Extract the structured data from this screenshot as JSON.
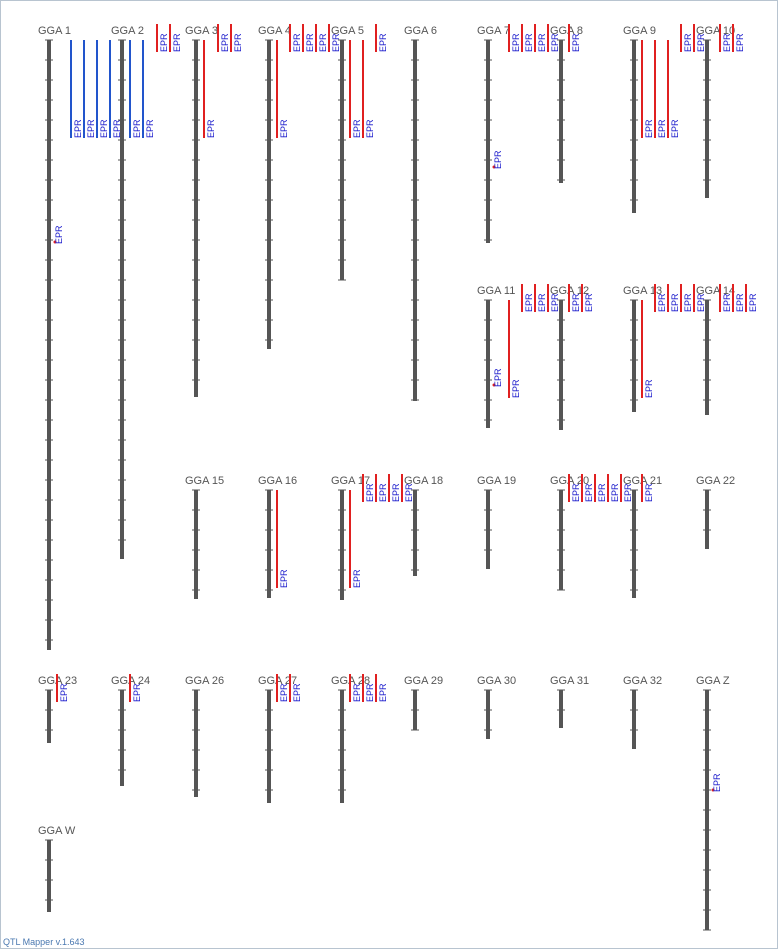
{
  "chromosomes": [
    {
      "label": "GGA 1",
      "qtls": [
        "EPR",
        "EPR",
        "EPR",
        "EPR",
        "EPR"
      ]
    },
    {
      "label": "GGA 2",
      "qtls": [
        "EPR",
        "EPR",
        "EPR",
        "EPR"
      ]
    },
    {
      "label": "GGA 3",
      "qtls": [
        "EPR",
        "EPR",
        "EPR"
      ]
    },
    {
      "label": "GGA 4",
      "qtls": [
        "EPR",
        "EPR",
        "EPR",
        "EPR",
        "EPR"
      ]
    },
    {
      "label": "GGA 5",
      "qtls": [
        "EPR",
        "EPR",
        "EPR"
      ]
    },
    {
      "label": "GGA 6",
      "qtls": []
    },
    {
      "label": "GGA 7",
      "qtls": [
        "EPR",
        "EPR",
        "EPR",
        "EPR",
        "EPR"
      ]
    },
    {
      "label": "GGA 8",
      "qtls": [
        "EPR"
      ]
    },
    {
      "label": "GGA 9",
      "qtls": [
        "EPR",
        "EPR",
        "EPR",
        "EPR",
        "EPR"
      ]
    },
    {
      "label": "GGA 10",
      "qtls": [
        "EPR",
        "EPR"
      ]
    },
    {
      "label": "GGA 11",
      "qtls": [
        "EPR",
        "EPR",
        "EPR",
        "EPR",
        "EPR"
      ]
    },
    {
      "label": "GGA 12",
      "qtls": [
        "EPR",
        "EPR"
      ]
    },
    {
      "label": "GGA 13",
      "qtls": [
        "EPR",
        "EPR",
        "EPR",
        "EPR",
        "EPR"
      ]
    },
    {
      "label": "GGA 14",
      "qtls": [
        "EPR",
        "EPR",
        "EPR"
      ]
    },
    {
      "label": "GGA 15",
      "qtls": []
    },
    {
      "label": "GGA 16",
      "qtls": [
        "EPR"
      ]
    },
    {
      "label": "GGA 17",
      "qtls": [
        "EPR",
        "EPR",
        "EPR",
        "EPR",
        "EPR"
      ]
    },
    {
      "label": "GGA 18",
      "qtls": []
    },
    {
      "label": "GGA 19",
      "qtls": []
    },
    {
      "label": "GGA 20",
      "qtls": [
        "EPR",
        "EPR",
        "EPR",
        "EPR",
        "EPR"
      ]
    },
    {
      "label": "GGA 21",
      "qtls": [
        "EPR"
      ]
    },
    {
      "label": "GGA 22",
      "qtls": []
    },
    {
      "label": "GGA 23",
      "qtls": [
        "EPR"
      ]
    },
    {
      "label": "GGA 24",
      "qtls": [
        "EPR"
      ]
    },
    {
      "label": "GGA 26",
      "qtls": []
    },
    {
      "label": "GGA 27",
      "qtls": [
        "EPR",
        "EPR"
      ]
    },
    {
      "label": "GGA 28",
      "qtls": [
        "EPR",
        "EPR",
        "EPR"
      ]
    },
    {
      "label": "GGA 29",
      "qtls": []
    },
    {
      "label": "GGA 30",
      "qtls": []
    },
    {
      "label": "GGA 31",
      "qtls": []
    },
    {
      "label": "GGA 32",
      "qtls": []
    },
    {
      "label": "GGA Z",
      "qtls": [
        "EPR"
      ]
    },
    {
      "label": "GGA W",
      "qtls": []
    }
  ],
  "footer": "QTL Mapper v.1.643"
}
